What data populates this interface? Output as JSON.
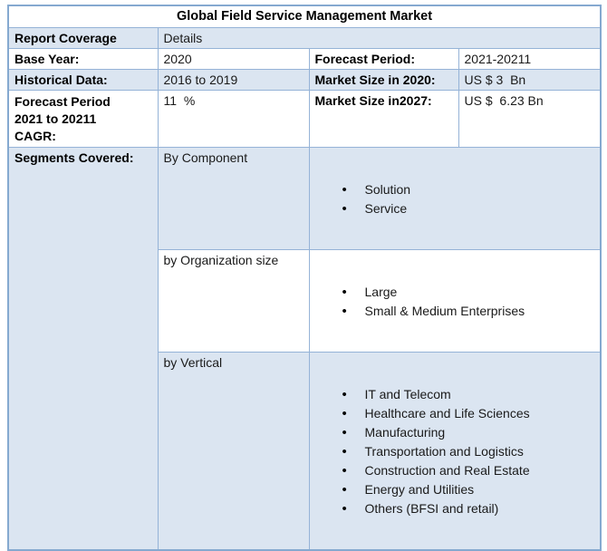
{
  "title": "Global Field Service Management Market",
  "rows": {
    "report_coverage": {
      "label": "Report Coverage",
      "value": "Details"
    },
    "base_year": {
      "label": "Base Year:",
      "value": "2020"
    },
    "forecast_period": {
      "label": "Forecast Period:",
      "value": "2021-20211"
    },
    "historical_data": {
      "label": "Historical Data:",
      "value": "2016 to 2019"
    },
    "market_size_2020": {
      "label": "Market Size in 2020:",
      "value": "US $ 3  Bn"
    },
    "forecast_cagr": {
      "label": "Forecast Period 2021 to 20211  CAGR:",
      "value": "11  %"
    },
    "market_size_2027": {
      "label": "Market Size in2027:",
      "value": "US $  6.23 Bn"
    },
    "segments_covered": {
      "label": "Segments Covered:"
    }
  },
  "segments": [
    {
      "name": "By Component",
      "items": [
        "Solution",
        "Service"
      ]
    },
    {
      "name": "by Organization size",
      "items": [
        "Large",
        "Small & Medium Enterprises"
      ]
    },
    {
      "name": "by Vertical",
      "items": [
        "IT and Telecom",
        "Healthcare and Life Sciences",
        "Manufacturing",
        "Transportation and Logistics",
        "Construction and Real Estate",
        "Energy and Utilities",
        "Others (BFSI and retail)"
      ]
    }
  ],
  "colors": {
    "row_blue": "#dbe5f1",
    "border": "#95b3d7",
    "text": "#1a1a1a"
  }
}
